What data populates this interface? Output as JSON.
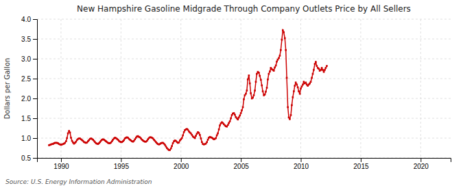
{
  "chart_data": {
    "type": "line",
    "title": "New Hampshire Gasoline Midgrade Through Company Outlets Price by All Sellers",
    "ylabel": "Dollars per Gallon",
    "annotations": [
      "Source: U.S. Energy Information Administration"
    ],
    "color": "#cc0000",
    "marker": "square",
    "grid": true,
    "xlim": [
      1988.0,
      2022.5
    ],
    "ylim": [
      0.5,
      4.0
    ],
    "xticks": [
      1990,
      1995,
      2000,
      2005,
      2010,
      2015,
      2020
    ],
    "yticks": [
      0.5,
      {
        "value": 1.0,
        "label": "1.0"
      },
      1.5,
      {
        "value": 2.0,
        "label": "2.0"
      },
      2.5,
      {
        "value": 3.0,
        "label": "3.0"
      },
      3.5,
      {
        "value": 4.0,
        "label": "4.0"
      }
    ],
    "x": [
      1989.0,
      1989.08,
      1989.17,
      1989.25,
      1989.33,
      1989.42,
      1989.5,
      1989.58,
      1989.67,
      1989.75,
      1989.83,
      1989.92,
      1990.0,
      1990.08,
      1990.17,
      1990.25,
      1990.33,
      1990.42,
      1990.5,
      1990.58,
      1990.67,
      1990.75,
      1990.83,
      1990.92,
      1991.0,
      1991.08,
      1991.17,
      1991.25,
      1991.33,
      1991.42,
      1991.5,
      1991.58,
      1991.67,
      1991.75,
      1991.83,
      1991.92,
      1992.0,
      1992.08,
      1992.17,
      1992.25,
      1992.33,
      1992.42,
      1992.5,
      1992.58,
      1992.67,
      1992.75,
      1992.83,
      1992.92,
      1993.0,
      1993.08,
      1993.17,
      1993.25,
      1993.33,
      1993.42,
      1993.5,
      1993.58,
      1993.67,
      1993.75,
      1993.83,
      1993.92,
      1994.0,
      1994.08,
      1994.17,
      1994.25,
      1994.33,
      1994.42,
      1994.5,
      1994.58,
      1994.67,
      1994.75,
      1994.83,
      1994.92,
      1995.0,
      1995.08,
      1995.17,
      1995.25,
      1995.33,
      1995.42,
      1995.5,
      1995.58,
      1995.67,
      1995.75,
      1995.83,
      1995.92,
      1996.0,
      1996.08,
      1996.17,
      1996.25,
      1996.33,
      1996.42,
      1996.5,
      1996.58,
      1996.67,
      1996.75,
      1996.83,
      1996.92,
      1997.0,
      1997.08,
      1997.17,
      1997.25,
      1997.33,
      1997.42,
      1997.5,
      1997.58,
      1997.67,
      1997.75,
      1997.83,
      1997.92,
      1998.0,
      1998.08,
      1998.17,
      1998.25,
      1998.33,
      1998.42,
      1998.5,
      1998.58,
      1998.67,
      1998.75,
      1998.83,
      1998.92,
      1999.0,
      1999.08,
      1999.17,
      1999.25,
      1999.33,
      1999.42,
      1999.5,
      1999.58,
      1999.67,
      1999.75,
      1999.83,
      1999.92,
      2000.0,
      2000.08,
      2000.17,
      2000.25,
      2000.33,
      2000.42,
      2000.5,
      2000.58,
      2000.67,
      2000.75,
      2000.83,
      2000.92,
      2001.0,
      2001.08,
      2001.17,
      2001.25,
      2001.33,
      2001.42,
      2001.5,
      2001.58,
      2001.67,
      2001.75,
      2001.83,
      2001.92,
      2002.0,
      2002.08,
      2002.17,
      2002.25,
      2002.33,
      2002.42,
      2002.5,
      2002.58,
      2002.67,
      2002.75,
      2002.83,
      2002.92,
      2003.0,
      2003.08,
      2003.17,
      2003.25,
      2003.33,
      2003.42,
      2003.5,
      2003.58,
      2003.67,
      2003.75,
      2003.83,
      2003.92,
      2004.0,
      2004.08,
      2004.17,
      2004.25,
      2004.33,
      2004.42,
      2004.5,
      2004.58,
      2004.67,
      2004.75,
      2004.83,
      2004.92,
      2005.0,
      2005.08,
      2005.17,
      2005.25,
      2005.33,
      2005.42,
      2005.5,
      2005.58,
      2005.67,
      2005.75,
      2005.83,
      2005.92,
      2006.0,
      2006.08,
      2006.17,
      2006.25,
      2006.33,
      2006.42,
      2006.5,
      2006.58,
      2006.67,
      2006.75,
      2006.83,
      2006.92,
      2007.0,
      2007.08,
      2007.17,
      2007.25,
      2007.33,
      2007.42,
      2007.5,
      2007.58,
      2007.67,
      2007.75,
      2007.83,
      2007.92,
      2008.0,
      2008.08,
      2008.17,
      2008.25,
      2008.33,
      2008.42,
      2008.5,
      2008.58,
      2008.67,
      2008.75,
      2008.83,
      2008.92,
      2009.0,
      2009.08,
      2009.17,
      2009.25,
      2009.33,
      2009.42,
      2009.5,
      2009.58,
      2009.67,
      2009.75,
      2009.83,
      2009.92,
      2010.0,
      2010.08,
      2010.17,
      2010.25,
      2010.33,
      2010.42,
      2010.5,
      2010.58,
      2010.67,
      2010.75,
      2010.83,
      2010.92,
      2011.0,
      2011.08,
      2011.17,
      2011.25,
      2011.33,
      2011.42,
      2011.5,
      2011.58,
      2011.67,
      2011.75,
      2011.83,
      2011.92,
      2012.0,
      2012.08,
      2012.17
    ],
    "values": [
      0.82,
      0.83,
      0.84,
      0.85,
      0.85,
      0.87,
      0.88,
      0.88,
      0.88,
      0.87,
      0.85,
      0.84,
      0.83,
      0.84,
      0.85,
      0.86,
      0.88,
      0.92,
      1.0,
      1.12,
      1.18,
      1.14,
      1.01,
      0.93,
      0.89,
      0.86,
      0.88,
      0.91,
      0.95,
      0.98,
      0.99,
      0.99,
      0.97,
      0.95,
      0.93,
      0.9,
      0.89,
      0.88,
      0.89,
      0.92,
      0.95,
      0.98,
      0.99,
      0.98,
      0.96,
      0.93,
      0.9,
      0.87,
      0.86,
      0.85,
      0.87,
      0.9,
      0.93,
      0.96,
      0.97,
      0.96,
      0.94,
      0.92,
      0.9,
      0.88,
      0.87,
      0.87,
      0.89,
      0.92,
      0.96,
      0.99,
      1.01,
      1.0,
      0.98,
      0.96,
      0.93,
      0.91,
      0.9,
      0.9,
      0.92,
      0.95,
      0.99,
      1.01,
      1.02,
      1.01,
      0.98,
      0.96,
      0.94,
      0.92,
      0.91,
      0.93,
      0.97,
      1.01,
      1.04,
      1.05,
      1.03,
      1.02,
      0.99,
      0.96,
      0.94,
      0.92,
      0.91,
      0.91,
      0.93,
      0.97,
      1.0,
      1.02,
      1.02,
      1.01,
      0.99,
      0.96,
      0.93,
      0.9,
      0.87,
      0.85,
      0.84,
      0.85,
      0.87,
      0.88,
      0.88,
      0.86,
      0.83,
      0.79,
      0.75,
      0.72,
      0.7,
      0.7,
      0.74,
      0.8,
      0.87,
      0.92,
      0.94,
      0.93,
      0.9,
      0.88,
      0.89,
      0.94,
      0.97,
      1.0,
      1.07,
      1.15,
      1.2,
      1.22,
      1.23,
      1.21,
      1.17,
      1.14,
      1.12,
      1.08,
      1.04,
      1.02,
      1.0,
      1.06,
      1.11,
      1.15,
      1.13,
      1.08,
      0.99,
      0.9,
      0.85,
      0.84,
      0.85,
      0.86,
      0.9,
      0.96,
      1.01,
      1.03,
      1.02,
      1.01,
      0.99,
      0.97,
      0.98,
      1.0,
      1.07,
      1.12,
      1.22,
      1.32,
      1.37,
      1.4,
      1.38,
      1.35,
      1.32,
      1.3,
      1.29,
      1.33,
      1.38,
      1.42,
      1.5,
      1.58,
      1.62,
      1.63,
      1.59,
      1.53,
      1.5,
      1.47,
      1.52,
      1.57,
      1.63,
      1.7,
      1.78,
      1.98,
      2.08,
      2.12,
      2.2,
      2.48,
      2.58,
      2.38,
      2.13,
      2.0,
      2.02,
      2.08,
      2.2,
      2.42,
      2.62,
      2.67,
      2.65,
      2.57,
      2.47,
      2.33,
      2.18,
      2.08,
      2.1,
      2.17,
      2.27,
      2.48,
      2.62,
      2.68,
      2.77,
      2.74,
      2.72,
      2.7,
      2.78,
      2.83,
      2.93,
      2.98,
      3.02,
      3.08,
      3.22,
      3.48,
      3.72,
      3.67,
      3.52,
      3.22,
      2.52,
      1.78,
      1.52,
      1.48,
      1.58,
      1.83,
      2.03,
      2.18,
      2.32,
      2.4,
      2.35,
      2.28,
      2.18,
      2.12,
      2.25,
      2.3,
      2.35,
      2.42,
      2.38,
      2.4,
      2.35,
      2.32,
      2.35,
      2.38,
      2.42,
      2.52,
      2.62,
      2.72,
      2.87,
      2.92,
      2.82,
      2.77,
      2.75,
      2.7,
      2.72,
      2.77,
      2.72,
      2.67,
      2.72,
      2.77,
      2.82
    ]
  }
}
